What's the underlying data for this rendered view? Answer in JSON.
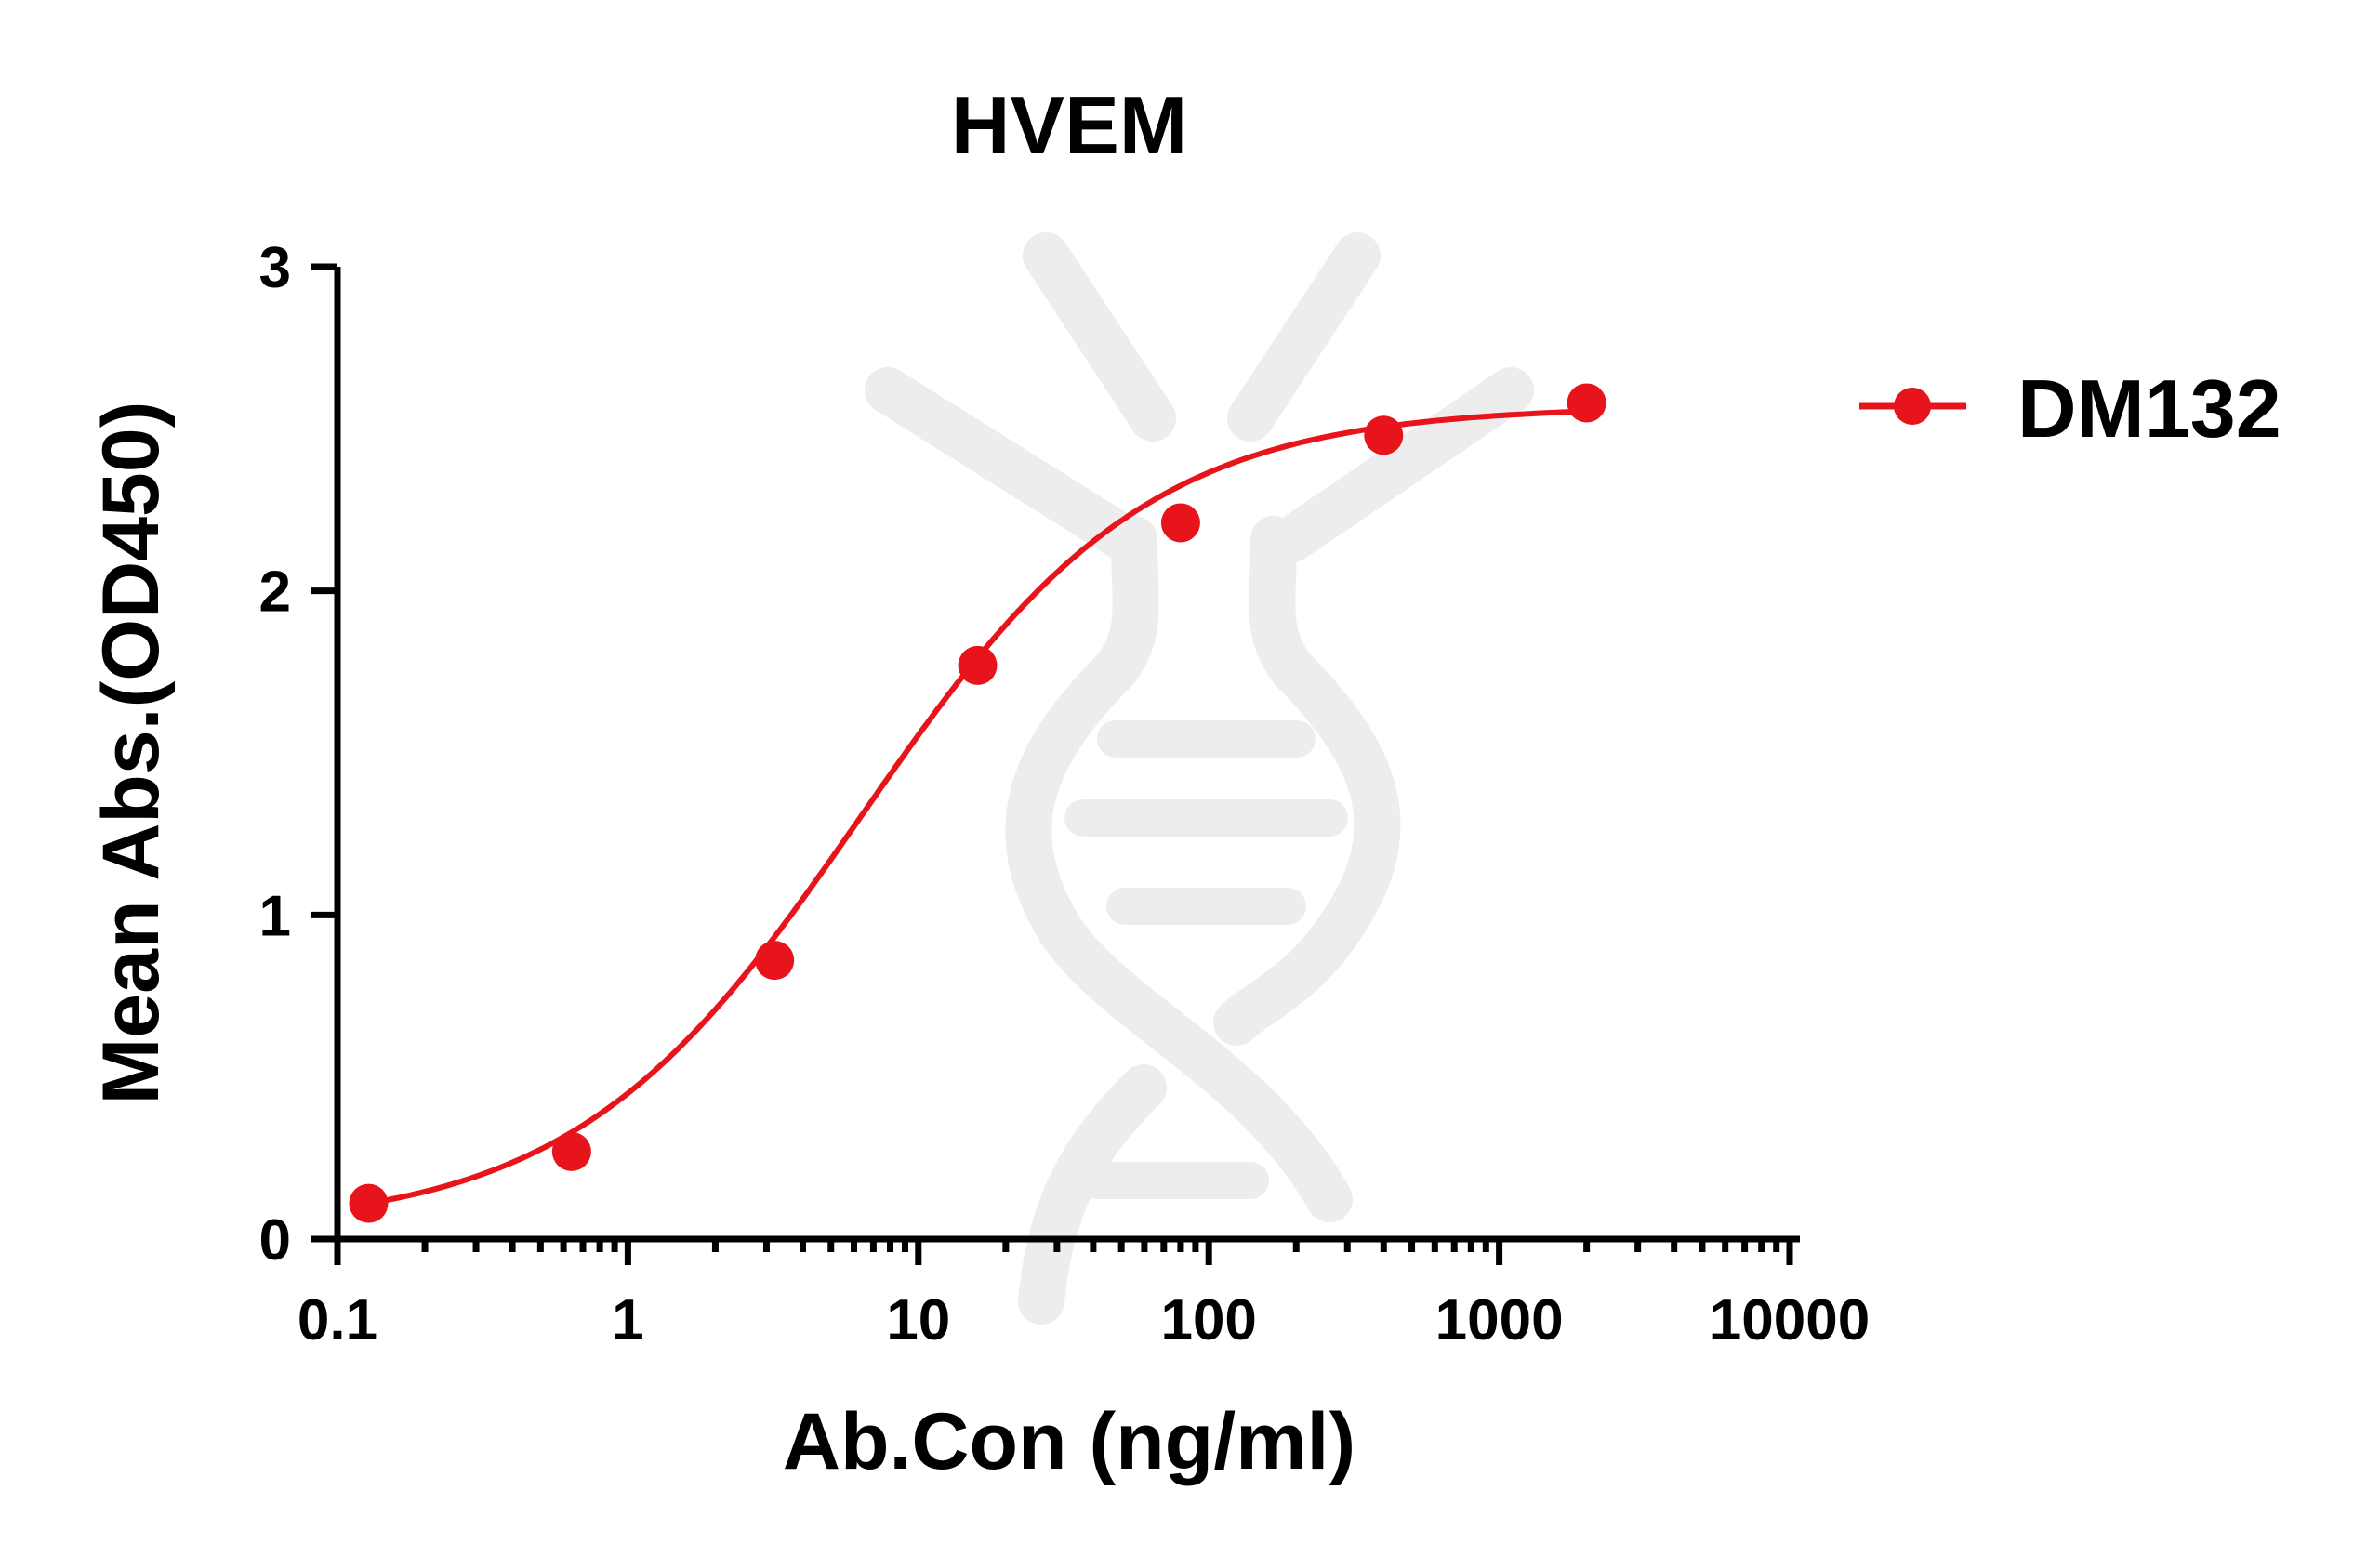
{
  "chart_data": {
    "type": "scatter",
    "title": "HVEM",
    "xlabel": "Ab.Con (ng/ml)",
    "ylabel": "Mean Abs.(OD450)",
    "xscale": "log",
    "xlim": [
      0.1,
      10000
    ],
    "ylim": [
      0,
      3
    ],
    "xticks": [
      0.1,
      1,
      10,
      100,
      1000,
      10000
    ],
    "xtick_labels": [
      "0.1",
      "1",
      "10",
      "100",
      "1000",
      "10000"
    ],
    "yticks": [
      0,
      1,
      2,
      3
    ],
    "ytick_labels": [
      "0",
      "1",
      "2",
      "3"
    ],
    "grid": false,
    "legend_position": "right",
    "series": [
      {
        "name": "DM132",
        "color": "#e8141b",
        "marker": "circle",
        "fit": "four-parameter logistic curve",
        "x": [
          0.128,
          0.64,
          3.2,
          16,
          80,
          400,
          2000
        ],
        "y": [
          0.11,
          0.27,
          0.86,
          1.77,
          2.21,
          2.48,
          2.58
        ]
      }
    ]
  }
}
